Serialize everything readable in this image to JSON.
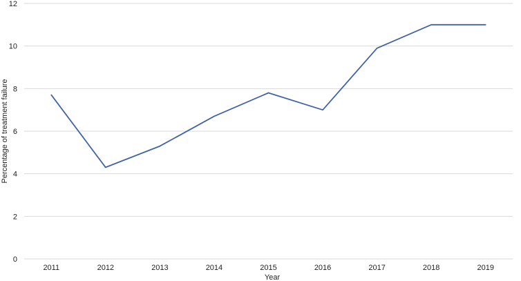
{
  "chart_data": {
    "type": "line",
    "title": "",
    "xlabel": "Year",
    "ylabel": "Percentage of treatment failure",
    "categories": [
      "2011",
      "2012",
      "2013",
      "2014",
      "2015",
      "2016",
      "2017",
      "2018",
      "2019"
    ],
    "series": [
      {
        "values": [
          7.7,
          4.3,
          5.3,
          6.7,
          7.8,
          7.0,
          9.9,
          11.0,
          11.0
        ]
      }
    ],
    "ylim": [
      0,
      12
    ],
    "yticks": [
      0,
      2,
      4,
      6,
      8,
      10,
      12
    ],
    "grid": true,
    "legend": "none",
    "colors": {
      "line": "#4063a8",
      "grid": "#d9d9d9"
    }
  }
}
